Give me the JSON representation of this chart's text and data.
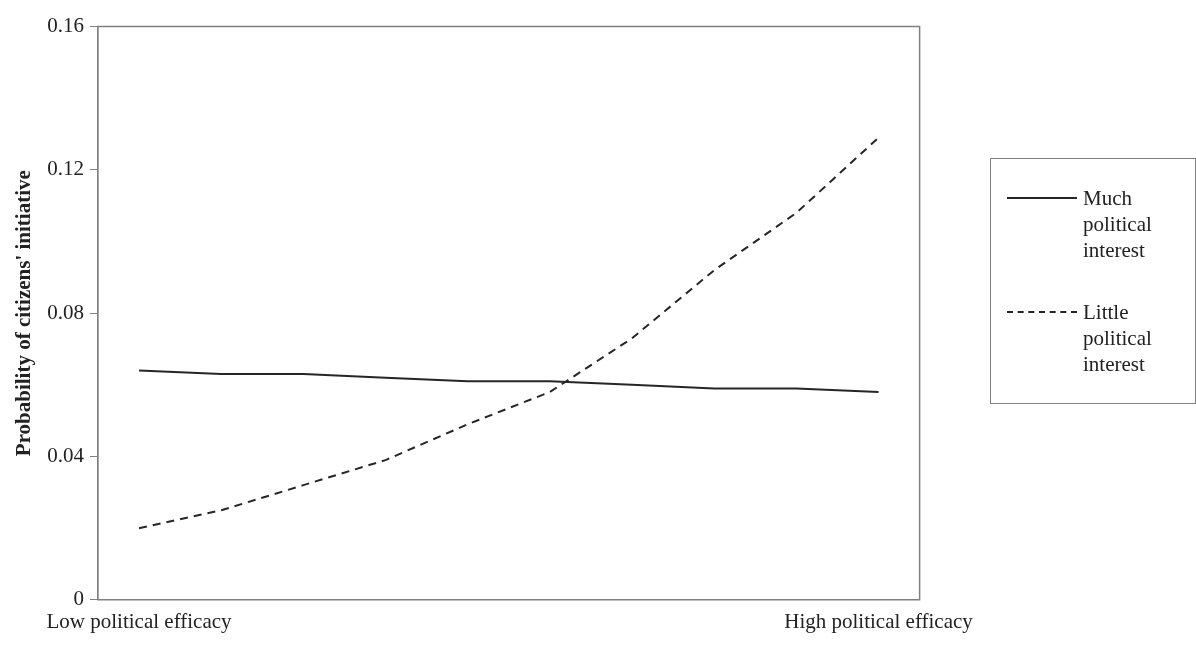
{
  "chart_data": {
    "type": "line",
    "ylabel": "Probability of citizens' initiative",
    "categories": [
      "Low political efficacy",
      null,
      null,
      null,
      null,
      null,
      null,
      null,
      null,
      "High political efficacy"
    ],
    "series": [
      {
        "name": "Much political interest",
        "color": "#262626",
        "line_style": "solid",
        "values": [
          0.064,
          0.063,
          0.063,
          0.062,
          0.061,
          0.061,
          0.06,
          0.059,
          0.059,
          0.058
        ]
      },
      {
        "name": "Little political interest",
        "color": "#262626",
        "line_style": "dashed",
        "values": [
          0.02,
          0.025,
          0.032,
          0.039,
          0.049,
          0.058,
          0.073,
          0.092,
          0.108,
          0.129
        ]
      }
    ],
    "ylim": [
      0,
      0.16
    ],
    "yticks": [
      0,
      0.04,
      0.08,
      0.12,
      0.16
    ],
    "grid": false,
    "legend": "right",
    "marker": "none"
  }
}
